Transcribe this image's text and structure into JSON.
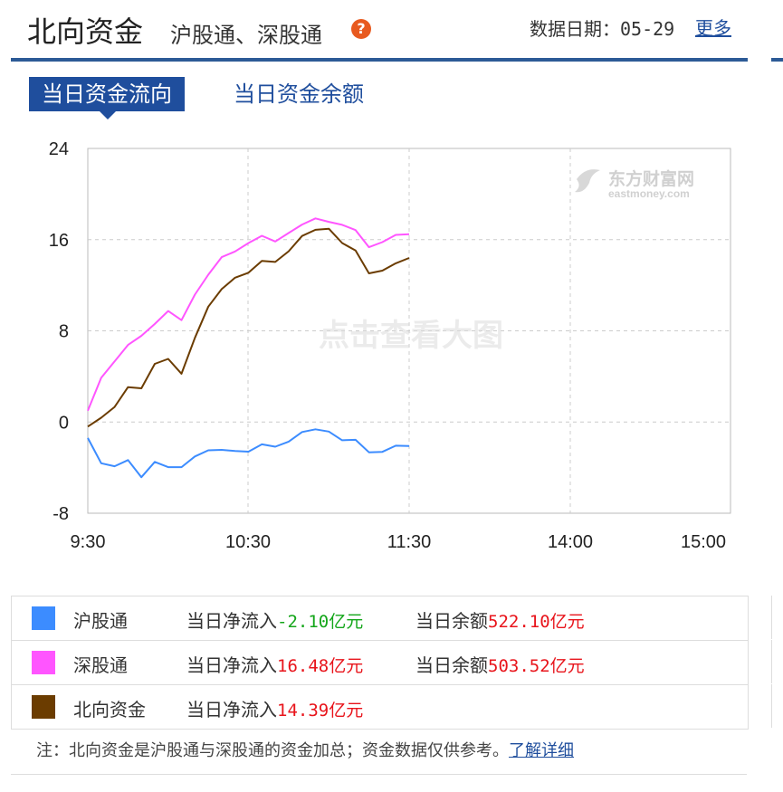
{
  "header": {
    "title": "北向资金",
    "subtitle": "沪股通、深股通",
    "help_icon": "question-icon",
    "date_label": "数据日期：05-29",
    "more_link": "更多"
  },
  "tabs": [
    {
      "label": "当日资金流向",
      "active": true
    },
    {
      "label": "当日资金余额",
      "active": false
    }
  ],
  "chart_data": {
    "type": "line",
    "watermark_logo": "东方财富网",
    "watermark_logo_en": "eastmoney.com",
    "watermark_text": "点击查看大图",
    "ylim": [
      -8,
      24
    ],
    "yticks": [
      "24",
      "16",
      "8",
      "0",
      "-8"
    ],
    "xticks": [
      "9:30",
      "10:30",
      "11:30",
      "14:00",
      "15:00"
    ],
    "grid": true,
    "x_minutes": [
      0,
      5,
      10,
      15,
      20,
      25,
      30,
      35,
      40,
      45,
      50,
      55,
      60,
      65,
      70,
      75,
      80,
      85,
      90,
      95,
      100,
      105,
      110,
      115,
      120
    ],
    "series": [
      {
        "name": "沪股通",
        "color": "#3c8cff",
        "values": [
          -1.4,
          -3.5,
          -4.0,
          -3.7,
          -4.6,
          -3.5,
          -4.2,
          -3.6,
          -2.9,
          -2.6,
          -2.8,
          -2.3,
          -2.6,
          -2.2,
          -1.8,
          -1.6,
          -1.0,
          -1.0,
          -0.6,
          -1.6,
          -1.8,
          -2.3,
          -2.5,
          -2.2,
          -2.1
        ]
      },
      {
        "name": "深股通",
        "color": "#ff55ff",
        "values": [
          1.0,
          4.0,
          5.2,
          6.4,
          7.8,
          8.6,
          9.5,
          9.3,
          11.3,
          12.8,
          14.1,
          15.2,
          15.7,
          16.1,
          16.2,
          16.7,
          17.2,
          17.5,
          17.8,
          17.3,
          16.6,
          15.7,
          15.9,
          16.3,
          16.48
        ]
      },
      {
        "name": "北向资金",
        "color": "#6b3c00",
        "values": [
          -0.4,
          0.5,
          1.2,
          2.7,
          3.2,
          5.1,
          5.3,
          4.6,
          7.5,
          10.0,
          11.3,
          12.9,
          13.1,
          13.9,
          14.4,
          15.1,
          16.2,
          16.5,
          17.2,
          15.7,
          14.8,
          13.4,
          13.4,
          13.8,
          14.39
        ]
      }
    ]
  },
  "legend": [
    {
      "name": "沪股通",
      "color": "#3c8cff",
      "flow_label": "当日净流入",
      "flow_value": "-2.10亿元",
      "flow_color": "green",
      "balance_label": "当日余额",
      "balance_value": "522.10亿元"
    },
    {
      "name": "深股通",
      "color": "#ff55ff",
      "flow_label": "当日净流入",
      "flow_value": "16.48亿元",
      "flow_color": "red",
      "balance_label": "当日余额",
      "balance_value": "503.52亿元"
    },
    {
      "name": "北向资金",
      "color": "#6b3c00",
      "flow_label": "当日净流入",
      "flow_value": "14.39亿元",
      "flow_color": "red",
      "balance_label": "",
      "balance_value": ""
    }
  ],
  "note": {
    "text": "注：北向资金是沪股通与深股通的资金加总；资金数据仅供参考。",
    "link": "了解详细"
  }
}
